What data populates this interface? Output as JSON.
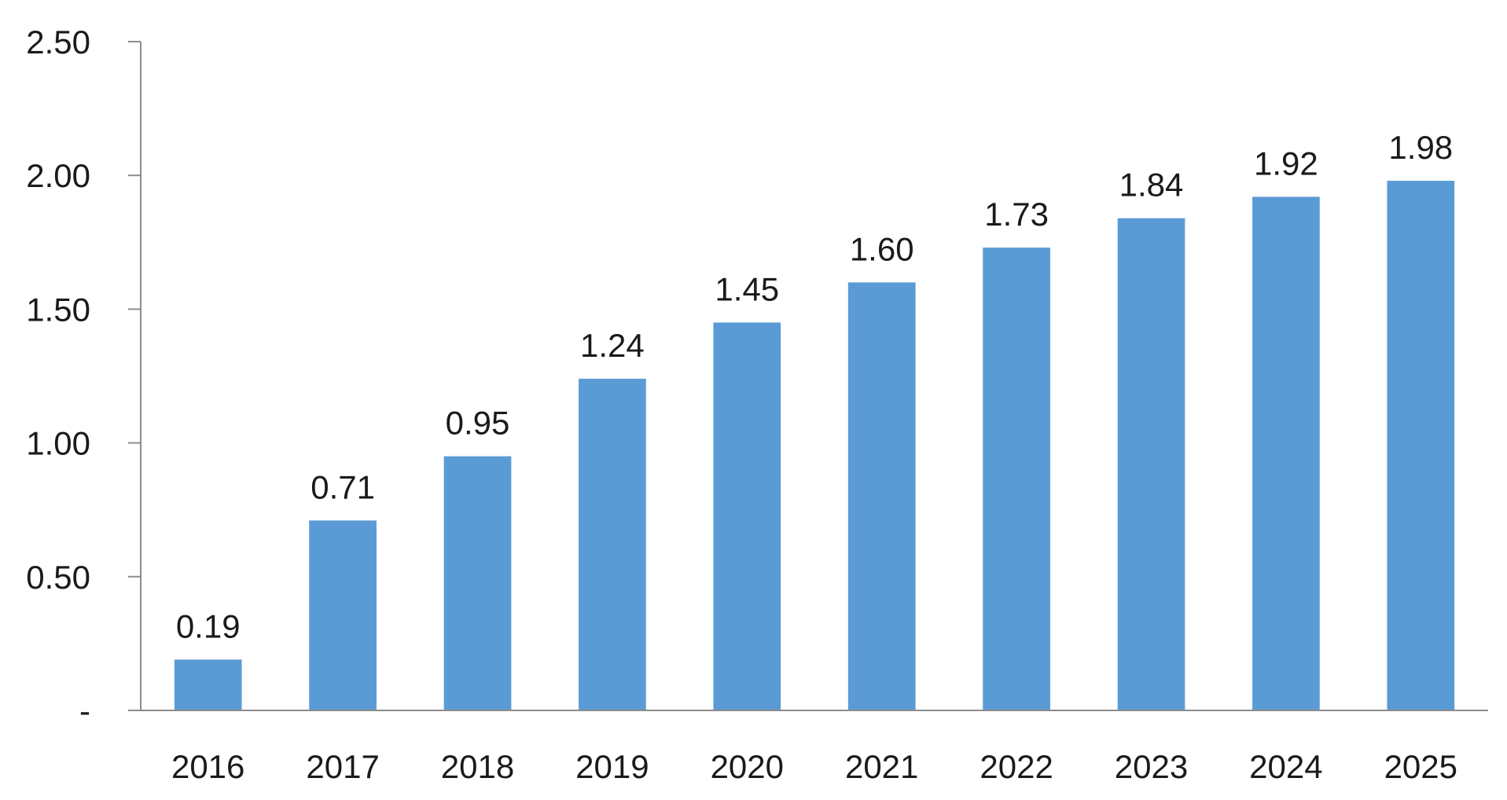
{
  "chart_data": {
    "type": "bar",
    "title": "",
    "xlabel": "",
    "ylabel": "",
    "categories": [
      "2016",
      "2017",
      "2018",
      "2019",
      "2020",
      "2021",
      "2022",
      "2023",
      "2024",
      "2025"
    ],
    "values": [
      0.19,
      0.71,
      0.95,
      1.24,
      1.45,
      1.6,
      1.73,
      1.84,
      1.92,
      1.98
    ],
    "value_labels": [
      "0.19",
      "0.71",
      "0.95",
      "1.24",
      "1.45",
      "1.60",
      "1.73",
      "1.84",
      "1.92",
      "1.98"
    ],
    "ylim": [
      0,
      2.5
    ],
    "y_ticks": [
      0,
      0.5,
      1.0,
      1.5,
      2.0,
      2.5
    ],
    "y_tick_labels": [
      "-",
      "0.50",
      "1.00",
      "1.50",
      "2.00",
      "2.50"
    ],
    "grid": false,
    "legend": "none",
    "colors": {
      "bar": "#5b9bd5",
      "axis": "#8c8c8c",
      "text": "#1a1a1a"
    }
  }
}
